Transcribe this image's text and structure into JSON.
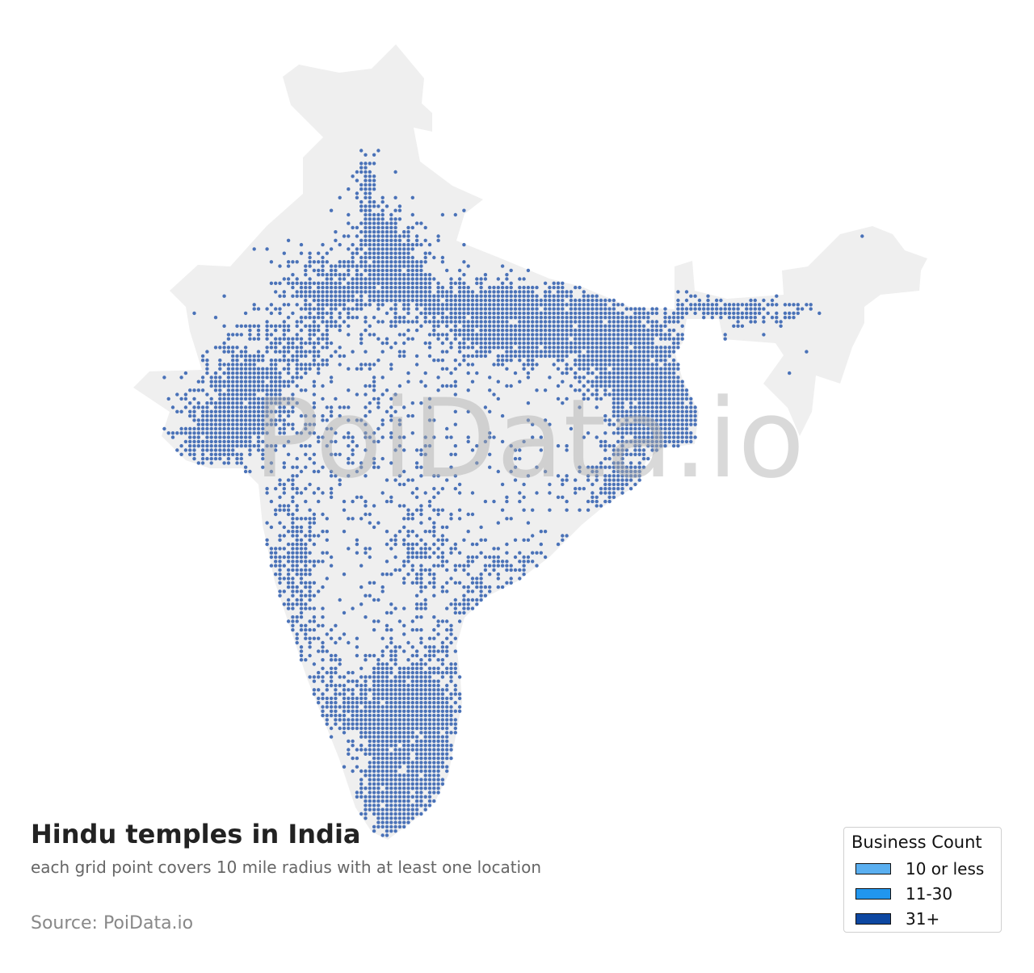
{
  "map": {
    "region": "India",
    "land_color": "#efefef",
    "dot_color": "#4a72b8",
    "watermark": "PoiData.io"
  },
  "title": "Hindu temples in India",
  "subtitle": "each grid point covers 10 mile radius with at least one location",
  "source": "Source: PoiData.io",
  "legend": {
    "title": "Business Count",
    "items": [
      {
        "label": "10 or less",
        "color": "#5aaff0"
      },
      {
        "label": "11-30",
        "color": "#2196ee"
      },
      {
        "label": "31+",
        "color": "#0d47a1"
      }
    ]
  }
}
